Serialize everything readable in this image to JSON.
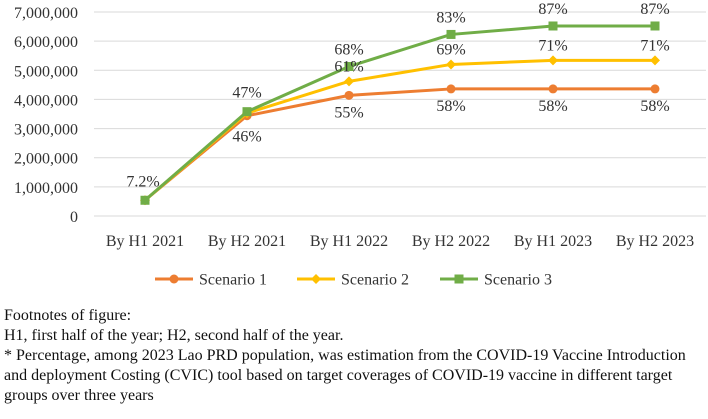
{
  "chart_data": {
    "type": "line",
    "categories": [
      "By H1 2021",
      "By H2 2021",
      "By H1 2022",
      "By H2 2022",
      "By H1 2023",
      "By H2 2023"
    ],
    "series": [
      {
        "name": "Scenario 1",
        "color": "#ED7D31",
        "marker": "circle",
        "values": [
          540000,
          3440000,
          4140000,
          4360000,
          4360000,
          4360000
        ],
        "labels": [
          "",
          "46%",
          "55%",
          "58%",
          "58%",
          "58%"
        ]
      },
      {
        "name": "Scenario 2",
        "color": "#FFC000",
        "marker": "diamond",
        "values": [
          540000,
          3530000,
          4620000,
          5200000,
          5340000,
          5340000
        ],
        "labels": [
          "",
          "",
          "61%",
          "69%",
          "71%",
          "71%"
        ]
      },
      {
        "name": "Scenario 3",
        "color": "#70AD47",
        "marker": "square",
        "values": [
          540000,
          3580000,
          5130000,
          6230000,
          6520000,
          6520000
        ],
        "labels": [
          "7.2%",
          "47%",
          "68%",
          "83%",
          "87%",
          "87%"
        ]
      }
    ],
    "ylim": [
      0,
      7000000
    ],
    "yticks": [
      "0",
      "1,000,000",
      "2,000,000",
      "3,000,000",
      "4,000,000",
      "5,000,000",
      "6,000,000",
      "7,000,000"
    ],
    "grid": true,
    "legend_position": "bottom",
    "title": "",
    "xlabel": "",
    "ylabel": ""
  },
  "footnotes": {
    "heading": "Footnotes of figure:",
    "line1": "H1, first half of the year; H2, second half of the year.",
    "line2": "* Percentage, among 2023 Lao PRD population, was estimation from the COVID-19 Vaccine Introduction and deployment Costing (CVIC) tool based on target coverages of COVID-19 vaccine in different target groups over three years"
  }
}
